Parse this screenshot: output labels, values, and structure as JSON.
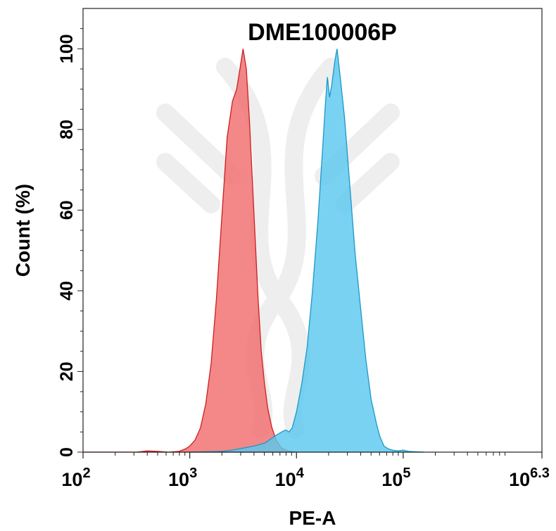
{
  "chart_data": {
    "type": "area",
    "title": "DME100006P",
    "xlabel": "PE-A",
    "ylabel": "Count (%)",
    "x_scale": "log10",
    "xlim": [
      2,
      6.3
    ],
    "ylim": [
      0,
      110
    ],
    "x_ticks": [
      {
        "base": "10",
        "exp": "2",
        "value": 2
      },
      {
        "base": "10",
        "exp": "3",
        "value": 3
      },
      {
        "base": "10",
        "exp": "4",
        "value": 4
      },
      {
        "base": "10",
        "exp": "5",
        "value": 5
      },
      {
        "base": "10",
        "exp": "6.3",
        "value": 6.3
      }
    ],
    "y_ticks": [
      "0",
      "20",
      "40",
      "60",
      "80",
      "100"
    ],
    "grid": false,
    "legend": "none",
    "series": [
      {
        "color": "#f26d6d",
        "stroke": "#cc1f1f",
        "points": [
          [
            2.0,
            0
          ],
          [
            2.5,
            0
          ],
          [
            2.6,
            0.3
          ],
          [
            2.7,
            0.2
          ],
          [
            2.8,
            0
          ],
          [
            2.9,
            0.2
          ],
          [
            2.96,
            0.8
          ],
          [
            3.0,
            1.5
          ],
          [
            3.05,
            3
          ],
          [
            3.1,
            6
          ],
          [
            3.15,
            12
          ],
          [
            3.2,
            22
          ],
          [
            3.25,
            38
          ],
          [
            3.3,
            58
          ],
          [
            3.35,
            78
          ],
          [
            3.4,
            87
          ],
          [
            3.44,
            90
          ],
          [
            3.47,
            95
          ],
          [
            3.5,
            100
          ],
          [
            3.53,
            95
          ],
          [
            3.56,
            82
          ],
          [
            3.6,
            60
          ],
          [
            3.64,
            38
          ],
          [
            3.67,
            25
          ],
          [
            3.7,
            17
          ],
          [
            3.73,
            11
          ],
          [
            3.77,
            6
          ],
          [
            3.81,
            3
          ],
          [
            3.86,
            1
          ],
          [
            3.92,
            0.3
          ],
          [
            4.0,
            0
          ]
        ]
      },
      {
        "color": "#5bc8ee",
        "stroke": "#1c98c8",
        "points": [
          [
            3.0,
            0
          ],
          [
            3.3,
            0.2
          ],
          [
            3.4,
            0.5
          ],
          [
            3.5,
            1
          ],
          [
            3.6,
            1.5
          ],
          [
            3.7,
            2.2
          ],
          [
            3.8,
            4
          ],
          [
            3.86,
            5
          ],
          [
            3.9,
            5.5
          ],
          [
            3.93,
            5
          ],
          [
            3.96,
            6
          ],
          [
            4.0,
            10
          ],
          [
            4.05,
            17
          ],
          [
            4.1,
            26
          ],
          [
            4.15,
            40
          ],
          [
            4.2,
            57
          ],
          [
            4.24,
            73
          ],
          [
            4.27,
            86
          ],
          [
            4.29,
            93
          ],
          [
            4.31,
            88
          ],
          [
            4.33,
            91
          ],
          [
            4.36,
            97
          ],
          [
            4.38,
            100
          ],
          [
            4.41,
            93
          ],
          [
            4.45,
            83
          ],
          [
            4.5,
            66
          ],
          [
            4.55,
            49
          ],
          [
            4.6,
            36
          ],
          [
            4.65,
            23
          ],
          [
            4.7,
            13
          ],
          [
            4.75,
            7
          ],
          [
            4.78,
            4
          ],
          [
            4.82,
            1.5
          ],
          [
            4.86,
            0.8
          ],
          [
            4.9,
            0.5
          ],
          [
            4.95,
            0.3
          ],
          [
            5.0,
            0.5
          ],
          [
            5.05,
            0.2
          ],
          [
            5.1,
            0.1
          ],
          [
            5.2,
            0
          ]
        ]
      }
    ]
  }
}
